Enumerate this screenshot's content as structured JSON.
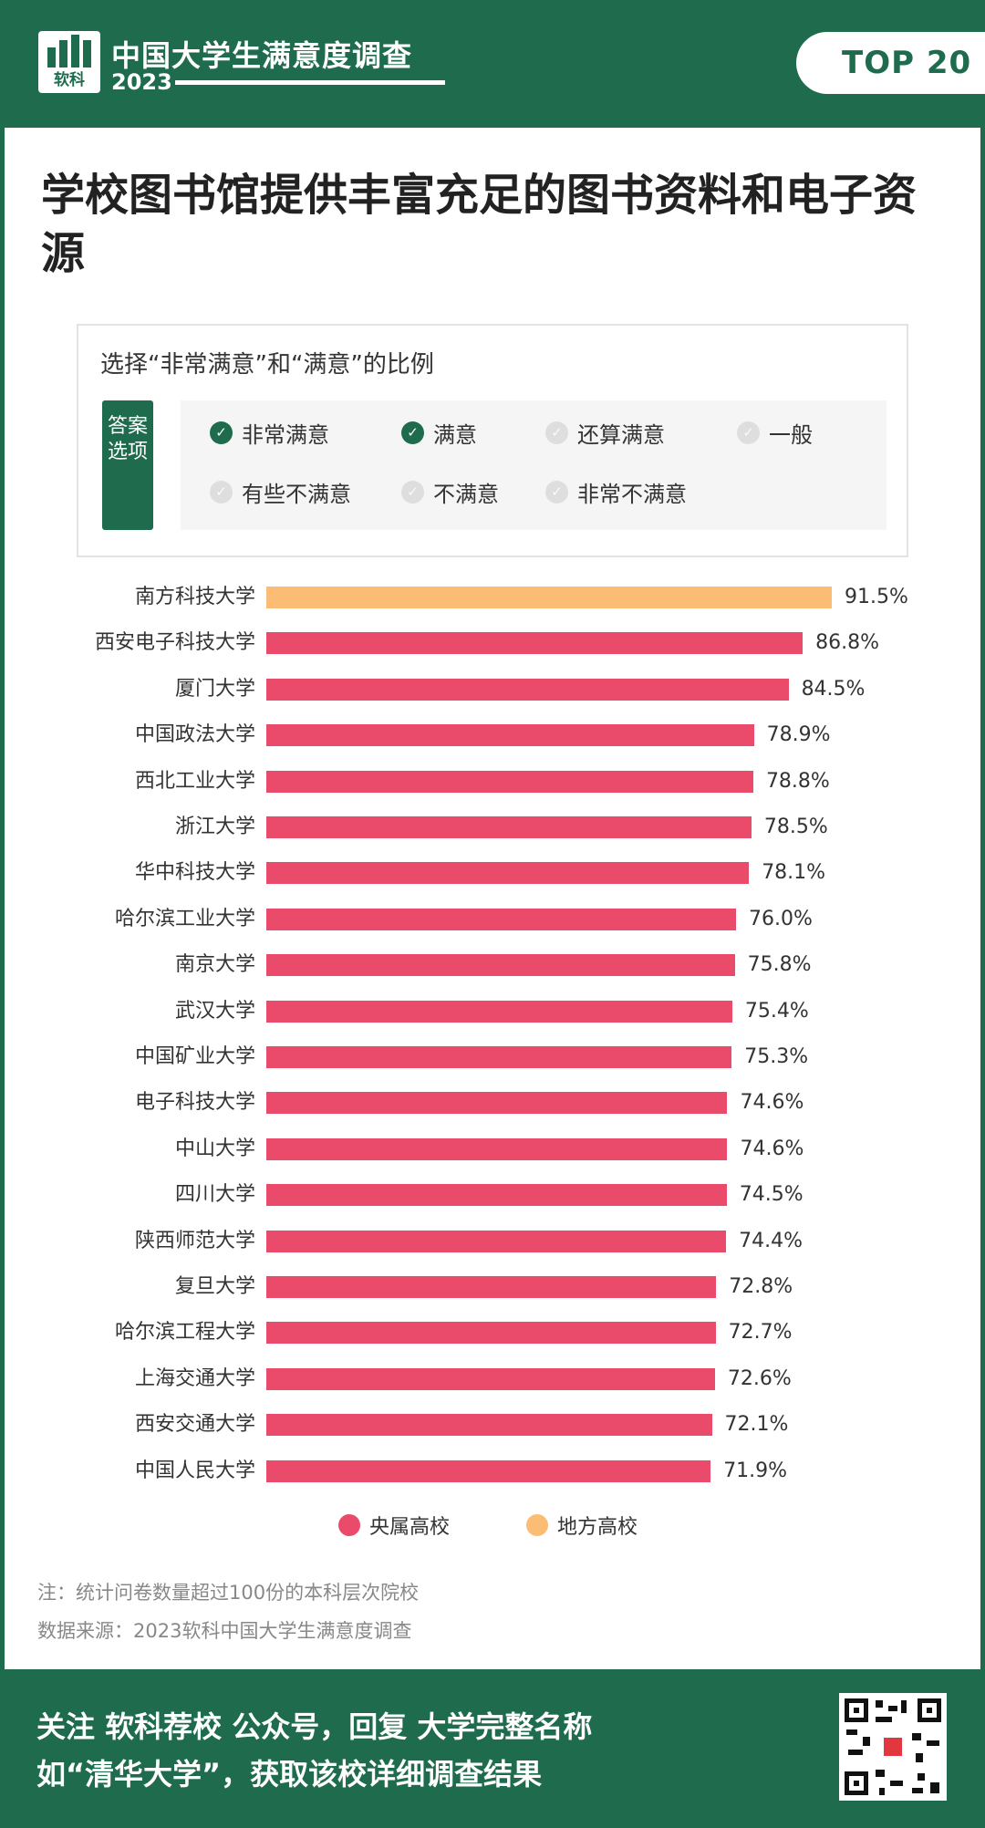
{
  "header": {
    "logo_text": "软科",
    "brand_title": "中国大学生满意度调查",
    "brand_year": "2023",
    "badge": "TOP 20"
  },
  "question": {
    "title": "学校图书馆提供丰富充足的图书资料和电子资源"
  },
  "options": {
    "label": "选择“非常满意”和“满意”的比例",
    "side_label": "答案选项",
    "items": [
      {
        "label": "非常满意",
        "checked": true
      },
      {
        "label": "满意",
        "checked": true
      },
      {
        "label": "还算满意",
        "checked": false
      },
      {
        "label": "一般",
        "checked": false
      },
      {
        "label": "有些不满意",
        "checked": false
      },
      {
        "label": "不满意",
        "checked": false
      },
      {
        "label": "非常不满意",
        "checked": false
      }
    ]
  },
  "chart_data": {
    "type": "bar",
    "orientation": "horizontal",
    "categories": [
      "南方科技大学",
      "西安电子科技大学",
      "厦门大学",
      "中国政法大学",
      "西北工业大学",
      "浙江大学",
      "华中科技大学",
      "哈尔滨工业大学",
      "南京大学",
      "武汉大学",
      "中国矿业大学",
      "电子科技大学",
      "中山大学",
      "四川大学",
      "陕西师范大学",
      "复旦大学",
      "哈尔滨工程大学",
      "上海交通大学",
      "西安交通大学",
      "中国人民大学"
    ],
    "values": [
      91.5,
      86.8,
      84.5,
      78.9,
      78.8,
      78.5,
      78.1,
      76.0,
      75.8,
      75.4,
      75.3,
      74.6,
      74.6,
      74.5,
      74.4,
      72.8,
      72.7,
      72.6,
      72.1,
      71.9
    ],
    "value_labels": [
      "91.5%",
      "86.8%",
      "84.5%",
      "78.9%",
      "78.8%",
      "78.5%",
      "78.1%",
      "76.0%",
      "75.8%",
      "75.4%",
      "75.3%",
      "74.6%",
      "74.6%",
      "74.5%",
      "74.4%",
      "72.8%",
      "72.7%",
      "72.6%",
      "72.1%",
      "71.9%"
    ],
    "groups": [
      "地方高校",
      "央属高校",
      "央属高校",
      "央属高校",
      "央属高校",
      "央属高校",
      "央属高校",
      "央属高校",
      "央属高校",
      "央属高校",
      "央属高校",
      "央属高校",
      "央属高校",
      "央属高校",
      "央属高校",
      "央属高校",
      "央属高校",
      "央属高校",
      "央属高校",
      "央属高校"
    ],
    "legend": [
      {
        "name": "央属高校",
        "color": "#ea4b6a"
      },
      {
        "name": "地方高校",
        "color": "#fbbd74"
      }
    ],
    "legend_position": "bottom",
    "unit": "%",
    "grid": false
  },
  "notes": [
    "注：统计问卷数量超过100份的本科层次院校",
    "数据来源：2023软科中国大学生满意度调查"
  ],
  "footer": {
    "line1": "关注 软科荐校 公众号，回复 大学完整名称",
    "line2": "如“清华大学”，获取该校详细调查结果",
    "qr_icon": "qr-code-icon"
  },
  "colors": {
    "brand_green": "#1f6b4e",
    "central": "#ea4b6a",
    "local": "#fbbd74"
  }
}
